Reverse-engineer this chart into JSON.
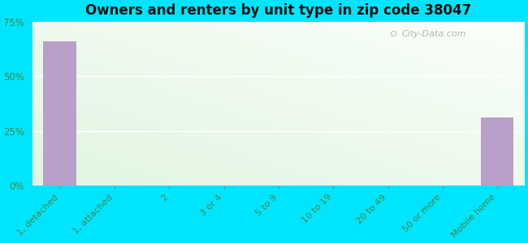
{
  "title": "Owners and renters by unit type in zip code 38047",
  "categories": [
    "1, detached",
    "1, attached",
    "2",
    "3 or 4",
    "5 to 9",
    "10 to 19",
    "20 to 49",
    "50 or more",
    "Mobile home"
  ],
  "values": [
    66,
    0,
    0,
    0,
    0,
    0,
    0,
    0,
    31
  ],
  "bar_color": "#b8a0c8",
  "ylim": [
    0,
    75
  ],
  "yticks": [
    0,
    25,
    50,
    75
  ],
  "ytick_labels": [
    "0%",
    "25%",
    "50%",
    "75%"
  ],
  "bg_outer": "#00e5ff",
  "title_fontsize": 12,
  "watermark": "City-Data.com",
  "gradient_top": "#d8efd0",
  "gradient_bottom": "#f0faee"
}
